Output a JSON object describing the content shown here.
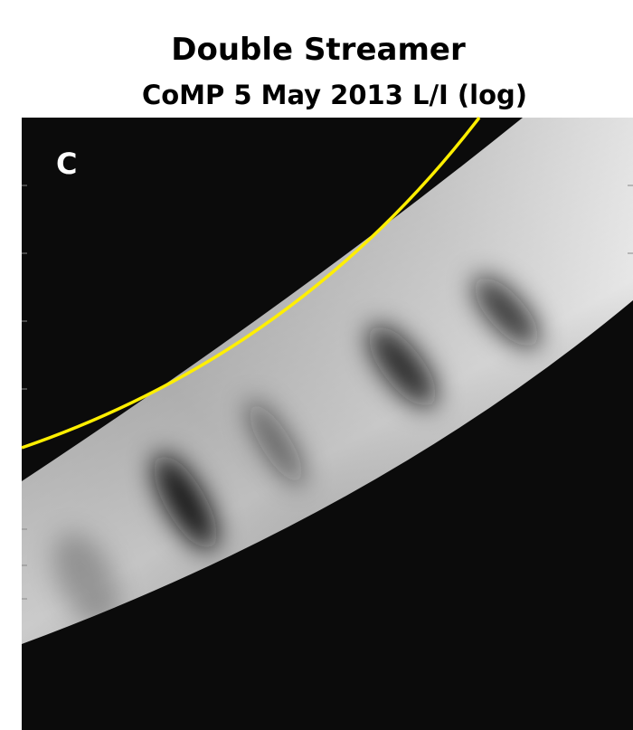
{
  "title": "Double Streamer",
  "subtitle": "CoMP 5 May 2013 L/I (log)",
  "panel_label": "C"
}
